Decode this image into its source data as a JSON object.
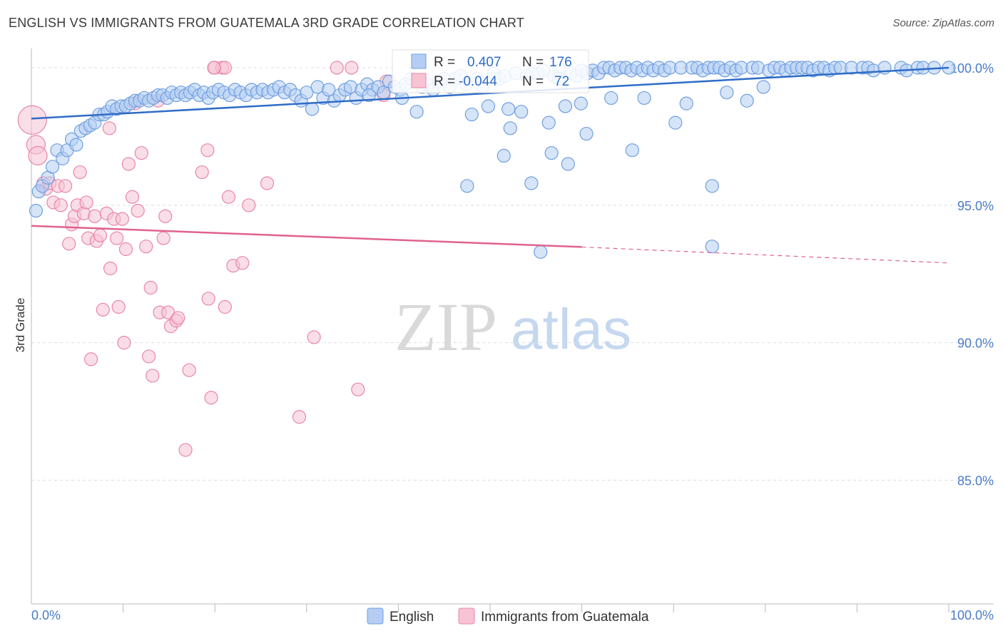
{
  "title": "ENGLISH VS IMMIGRANTS FROM GUATEMALA 3RD GRADE CORRELATION CHART",
  "source": "Source: ZipAtlas.com",
  "watermark": {
    "zip": "ZIP",
    "atlas": "atlas"
  },
  "colors": {
    "english": "#6f9fe0",
    "english_fill": "#b5cdf2",
    "english_line": "#2f6cc7",
    "guatemala": "#e986a8",
    "guatemala_fill": "#f6c3d3",
    "guatemala_line": "#e0628f",
    "axis_text": "#4a7cc9",
    "grid": "#dddddd"
  },
  "stats": [
    {
      "r_label": "R =",
      "r_value": "0.407",
      "n_label": "N =",
      "n_value": "176"
    },
    {
      "r_label": "R =",
      "r_value": "-0.044",
      "n_label": "N =",
      "n_value": "72"
    }
  ],
  "chart_data": {
    "type": "scatter",
    "title": "ENGLISH VS IMMIGRANTS FROM GUATEMALA 3RD GRADE CORRELATION CHART",
    "xlabel": "",
    "ylabel": "3rd Grade",
    "xlim": [
      0,
      100
    ],
    "ylim": [
      80.5,
      100.7
    ],
    "y_ticks": [
      85,
      90,
      95,
      100
    ],
    "y_tick_labels": [
      "85.0%",
      "90.0%",
      "95.0%",
      "100.0%"
    ],
    "x_tick_labels": [
      "0.0%",
      "100.0%"
    ],
    "legend": [
      "English",
      "Immigrants from Guatemala"
    ],
    "legend_position": "bottom-center",
    "grid": true,
    "series": [
      {
        "name": "English",
        "trend": {
          "x0": 0,
          "y0": 98.15,
          "x1": 100,
          "y1": 100.0
        },
        "points": [
          [
            0.5,
            94.8
          ],
          [
            0.8,
            95.5
          ],
          [
            1.2,
            95.7
          ],
          [
            1.8,
            96.0
          ],
          [
            2.3,
            96.4
          ],
          [
            2.8,
            97.0
          ],
          [
            3.4,
            96.7
          ],
          [
            3.9,
            97.0
          ],
          [
            4.4,
            97.4
          ],
          [
            4.9,
            97.2
          ],
          [
            5.4,
            97.7
          ],
          [
            5.9,
            97.8
          ],
          [
            6.4,
            97.9
          ],
          [
            6.9,
            98.0
          ],
          [
            7.4,
            98.3
          ],
          [
            7.9,
            98.3
          ],
          [
            8.3,
            98.4
          ],
          [
            8.8,
            98.6
          ],
          [
            9.3,
            98.5
          ],
          [
            9.8,
            98.6
          ],
          [
            10.3,
            98.6
          ],
          [
            10.8,
            98.7
          ],
          [
            11.3,
            98.8
          ],
          [
            11.8,
            98.8
          ],
          [
            12.3,
            98.9
          ],
          [
            12.8,
            98.8
          ],
          [
            13.3,
            98.9
          ],
          [
            13.8,
            99.0
          ],
          [
            14.3,
            99.0
          ],
          [
            14.8,
            98.9
          ],
          [
            15.3,
            99.1
          ],
          [
            15.8,
            99.0
          ],
          [
            16.3,
            99.1
          ],
          [
            16.8,
            99.0
          ],
          [
            17.3,
            99.1
          ],
          [
            17.8,
            99.2
          ],
          [
            18.3,
            99.0
          ],
          [
            18.8,
            99.1
          ],
          [
            19.3,
            98.9
          ],
          [
            19.8,
            99.1
          ],
          [
            20.4,
            99.2
          ],
          [
            21.0,
            99.1
          ],
          [
            21.6,
            99.0
          ],
          [
            22.2,
            99.2
          ],
          [
            22.8,
            99.1
          ],
          [
            23.4,
            99.0
          ],
          [
            24.0,
            99.2
          ],
          [
            24.6,
            99.1
          ],
          [
            25.2,
            99.2
          ],
          [
            25.8,
            99.1
          ],
          [
            26.4,
            99.2
          ],
          [
            27.0,
            99.3
          ],
          [
            27.6,
            99.1
          ],
          [
            28.2,
            99.2
          ],
          [
            28.8,
            99.0
          ],
          [
            29.4,
            98.8
          ],
          [
            30.0,
            99.1
          ],
          [
            30.6,
            98.5
          ],
          [
            31.2,
            99.3
          ],
          [
            31.8,
            98.9
          ],
          [
            32.4,
            99.2
          ],
          [
            33.0,
            98.8
          ],
          [
            33.6,
            99.0
          ],
          [
            34.2,
            99.2
          ],
          [
            34.8,
            99.3
          ],
          [
            35.4,
            98.9
          ],
          [
            36.0,
            99.2
          ],
          [
            36.6,
            99.4
          ],
          [
            37.2,
            99.2
          ],
          [
            37.8,
            99.3
          ],
          [
            38.4,
            99.1
          ],
          [
            39.0,
            99.5
          ],
          [
            39.6,
            99.3
          ],
          [
            40.2,
            99.2
          ],
          [
            40.8,
            99.4
          ],
          [
            41.4,
            99.6
          ],
          [
            42.0,
            98.4
          ],
          [
            42.6,
            99.3
          ],
          [
            43.2,
            99.4
          ],
          [
            43.8,
            99.2
          ],
          [
            44.4,
            99.5
          ],
          [
            45.0,
            99.6
          ],
          [
            45.6,
            99.3
          ],
          [
            46.2,
            99.6
          ],
          [
            46.8,
            99.7
          ],
          [
            47.4,
            99.4
          ],
          [
            48.0,
            98.3
          ],
          [
            48.6,
            99.6
          ],
          [
            49.2,
            99.3
          ],
          [
            49.8,
            98.6
          ],
          [
            50.4,
            99.8
          ],
          [
            51.0,
            99.6
          ],
          [
            51.6,
            99.7
          ],
          [
            52.2,
            97.8
          ],
          [
            52.8,
            99.8
          ],
          [
            53.4,
            98.4
          ],
          [
            54.0,
            99.7
          ],
          [
            54.6,
            99.8
          ],
          [
            55.2,
            99.8
          ],
          [
            55.8,
            99.9
          ],
          [
            56.4,
            98.0
          ],
          [
            57.0,
            99.7
          ],
          [
            57.6,
            99.9
          ],
          [
            58.2,
            98.6
          ],
          [
            58.8,
            99.8
          ],
          [
            59.4,
            99.7
          ],
          [
            60.0,
            99.9
          ],
          [
            60.6,
            99.8
          ],
          [
            61.2,
            99.9
          ],
          [
            61.8,
            99.8
          ],
          [
            62.4,
            100.0
          ],
          [
            63.0,
            100.0
          ],
          [
            63.6,
            99.9
          ],
          [
            64.2,
            100.0
          ],
          [
            64.8,
            100.0
          ],
          [
            65.4,
            99.9
          ],
          [
            66.0,
            100.0
          ],
          [
            66.6,
            99.9
          ],
          [
            67.2,
            100.0
          ],
          [
            67.8,
            99.9
          ],
          [
            68.4,
            100.0
          ],
          [
            69.0,
            99.9
          ],
          [
            69.6,
            100.0
          ],
          [
            70.2,
            98.0
          ],
          [
            70.8,
            100.0
          ],
          [
            71.4,
            98.7
          ],
          [
            72.0,
            100.0
          ],
          [
            72.6,
            100.0
          ],
          [
            73.2,
            99.9
          ],
          [
            73.8,
            100.0
          ],
          [
            74.4,
            100.0
          ],
          [
            75.0,
            100.0
          ],
          [
            75.6,
            99.9
          ],
          [
            76.2,
            100.0
          ],
          [
            76.8,
            99.9
          ],
          [
            77.4,
            100.0
          ],
          [
            78.0,
            98.8
          ],
          [
            78.6,
            100.0
          ],
          [
            79.2,
            100.0
          ],
          [
            79.8,
            99.3
          ],
          [
            80.4,
            99.9
          ],
          [
            81.0,
            100.0
          ],
          [
            81.6,
            100.0
          ],
          [
            82.2,
            99.9
          ],
          [
            82.8,
            100.0
          ],
          [
            83.4,
            100.0
          ],
          [
            84.0,
            100.0
          ],
          [
            84.6,
            100.0
          ],
          [
            85.2,
            99.9
          ],
          [
            85.8,
            100.0
          ],
          [
            86.4,
            100.0
          ],
          [
            87.0,
            99.9
          ],
          [
            87.6,
            100.0
          ],
          [
            88.2,
            100.0
          ],
          [
            89.4,
            100.0
          ],
          [
            90.6,
            100.0
          ],
          [
            91.2,
            100.0
          ],
          [
            91.8,
            99.9
          ],
          [
            93.0,
            100.0
          ],
          [
            94.8,
            100.0
          ],
          [
            95.4,
            99.9
          ],
          [
            96.6,
            100.0
          ],
          [
            97.2,
            100.0
          ],
          [
            98.4,
            100.0
          ],
          [
            100.0,
            100.0
          ],
          [
            47.5,
            95.7
          ],
          [
            51.5,
            96.8
          ],
          [
            54.5,
            95.8
          ],
          [
            56.7,
            96.9
          ],
          [
            58.5,
            96.5
          ],
          [
            60.5,
            97.6
          ],
          [
            65.5,
            97.0
          ],
          [
            74.2,
            95.7
          ],
          [
            74.2,
            93.5
          ],
          [
            55.5,
            93.3
          ],
          [
            36.8,
            99.0
          ],
          [
            40.4,
            98.9
          ],
          [
            52.0,
            98.5
          ],
          [
            57.5,
            99.6
          ],
          [
            63.2,
            98.9
          ],
          [
            66.8,
            98.9
          ],
          [
            75.8,
            99.1
          ],
          [
            59.9,
            98.7
          ]
        ]
      },
      {
        "name": "Immigrants from Guatemala",
        "trend": {
          "x0": 0,
          "y0": 94.25,
          "x1": 60,
          "y1": 93.48,
          "dash_to": {
            "x": 100,
            "y": 92.9
          }
        },
        "points": [
          [
            0.1,
            98.1
          ],
          [
            0.5,
            97.2
          ],
          [
            0.7,
            96.8
          ],
          [
            1.3,
            95.8
          ],
          [
            1.6,
            95.6
          ],
          [
            2.0,
            95.8
          ],
          [
            2.4,
            95.1
          ],
          [
            2.9,
            95.7
          ],
          [
            3.2,
            95.0
          ],
          [
            3.7,
            95.7
          ],
          [
            4.1,
            93.6
          ],
          [
            4.4,
            94.3
          ],
          [
            4.7,
            94.6
          ],
          [
            5.0,
            95.0
          ],
          [
            5.3,
            96.2
          ],
          [
            5.7,
            94.7
          ],
          [
            6.0,
            95.1
          ],
          [
            6.2,
            93.8
          ],
          [
            6.5,
            89.4
          ],
          [
            6.9,
            94.6
          ],
          [
            7.1,
            93.7
          ],
          [
            7.5,
            93.9
          ],
          [
            7.8,
            91.2
          ],
          [
            8.2,
            94.7
          ],
          [
            8.5,
            97.8
          ],
          [
            8.6,
            92.7
          ],
          [
            9.0,
            94.5
          ],
          [
            9.3,
            93.8
          ],
          [
            9.5,
            91.3
          ],
          [
            9.9,
            94.5
          ],
          [
            10.1,
            90.0
          ],
          [
            10.3,
            93.4
          ],
          [
            10.6,
            96.5
          ],
          [
            11.0,
            95.3
          ],
          [
            11.3,
            98.7
          ],
          [
            11.6,
            94.8
          ],
          [
            12.0,
            96.9
          ],
          [
            12.5,
            93.5
          ],
          [
            12.8,
            89.5
          ],
          [
            13.0,
            92.0
          ],
          [
            13.2,
            88.8
          ],
          [
            13.8,
            98.8
          ],
          [
            14.0,
            91.1
          ],
          [
            14.4,
            93.8
          ],
          [
            14.6,
            94.6
          ],
          [
            14.9,
            91.1
          ],
          [
            15.2,
            90.6
          ],
          [
            15.8,
            90.8
          ],
          [
            16.0,
            90.9
          ],
          [
            16.8,
            86.1
          ],
          [
            17.2,
            89.0
          ],
          [
            18.6,
            96.2
          ],
          [
            19.2,
            97.0
          ],
          [
            19.3,
            91.6
          ],
          [
            19.6,
            88.0
          ],
          [
            20.0,
            100.0
          ],
          [
            20.8,
            100.0
          ],
          [
            21.1,
            91.3
          ],
          [
            21.5,
            95.3
          ],
          [
            22.0,
            92.8
          ],
          [
            23.0,
            92.9
          ],
          [
            23.7,
            95.0
          ],
          [
            25.7,
            95.8
          ],
          [
            29.2,
            87.3
          ],
          [
            30.8,
            90.2
          ],
          [
            33.3,
            100.0
          ],
          [
            34.9,
            100.0
          ],
          [
            35.6,
            88.3
          ],
          [
            38.7,
            99.5
          ],
          [
            21.1,
            100.0
          ],
          [
            19.9,
            100.0
          ],
          [
            38.4,
            99.0
          ]
        ]
      }
    ]
  }
}
